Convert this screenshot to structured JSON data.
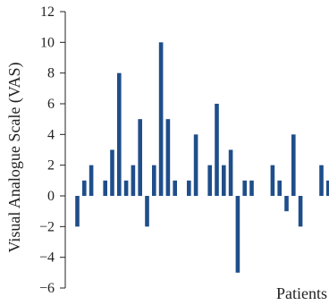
{
  "chart_data": {
    "type": "bar",
    "ylabel": "Visual Analogue Scale (VAS)",
    "xlabel": "Patients",
    "ylim": [
      -6,
      12
    ],
    "yticks": [
      12,
      10,
      8,
      6,
      4,
      2,
      0,
      -2,
      -4,
      -6
    ],
    "ytick_labels": [
      "12",
      "10",
      "8",
      "6",
      "4",
      "2",
      "0",
      "−2",
      "−4",
      "−6"
    ],
    "grid": false,
    "values": [
      -2,
      1,
      2,
      0,
      1,
      3,
      8,
      1,
      2,
      5,
      -2,
      2,
      10,
      5,
      1,
      0,
      1,
      4,
      0,
      2,
      6,
      2,
      3,
      -5,
      1,
      1,
      0,
      0,
      2,
      1,
      -1,
      4,
      -2,
      0,
      0,
      2,
      1
    ],
    "bar_color": "#1f4e8a",
    "axis_color": "#222222"
  }
}
